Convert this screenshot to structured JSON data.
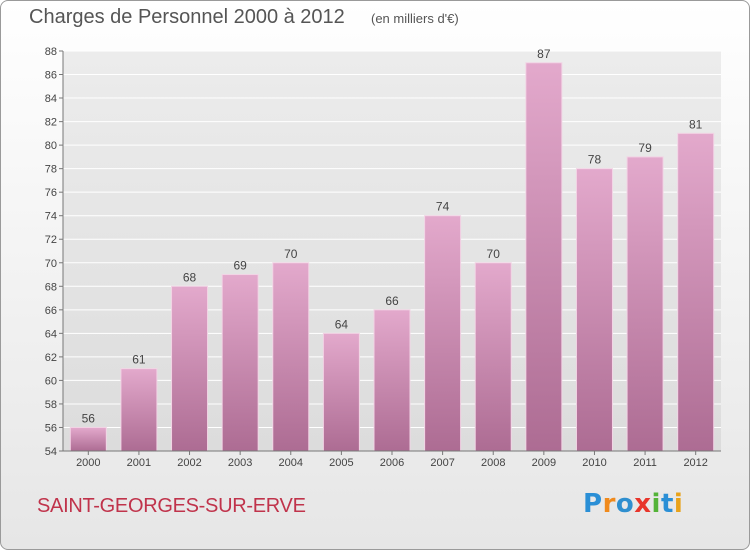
{
  "chart_data": {
    "type": "bar",
    "title": "Charges de Personnel 2000 à 2012",
    "subtitle": "(en milliers d'€)",
    "categories": [
      "2000",
      "2001",
      "2002",
      "2003",
      "2004",
      "2005",
      "2006",
      "2007",
      "2008",
      "2009",
      "2010",
      "2011",
      "2012"
    ],
    "values": [
      56,
      61,
      68,
      69,
      70,
      64,
      66,
      74,
      70,
      87,
      78,
      79,
      81
    ],
    "ylim": [
      54,
      88
    ],
    "ytick_step": 2,
    "grid": "y-major",
    "bar_color": "#c97faa",
    "xlabel": "",
    "ylabel": ""
  },
  "commune": "SAINT-GEORGES-SUR-ERVE",
  "logo_text": "Proxiti",
  "colors": {
    "title": "#555555",
    "commune": "#c0334b",
    "grid": "#ffffff",
    "plot_background": "#e2e2e2"
  }
}
